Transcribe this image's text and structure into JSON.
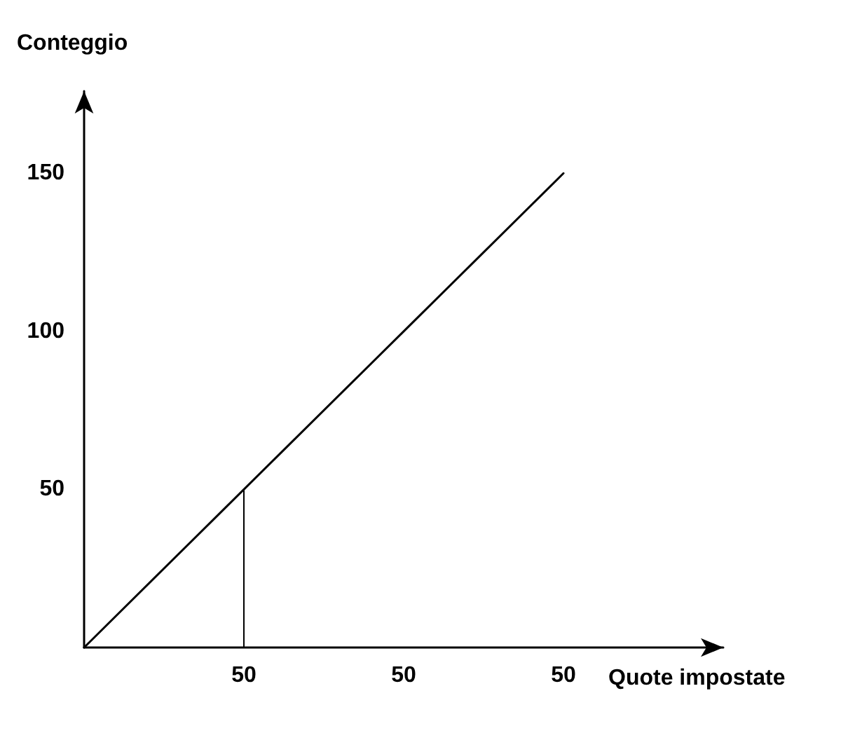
{
  "chart_data": {
    "type": "line",
    "ylabel": "Conteggio",
    "xlabel": "Quote impostate",
    "categories": [
      null,
      "50",
      "50",
      "50",
      null
    ],
    "ylim": [
      0,
      176
    ],
    "yticks": [
      50,
      100,
      150
    ],
    "grid": false,
    "marker": "none",
    "series": [
      {
        "color": "#000000",
        "values": [
          0,
          50,
          100,
          150,
          null
        ],
        "line_style": "solid"
      },
      {
        "type": "bar",
        "color": "#000000",
        "values": [
          null,
          50,
          null,
          null,
          null
        ],
        "line_style": "dashed"
      }
    ]
  }
}
